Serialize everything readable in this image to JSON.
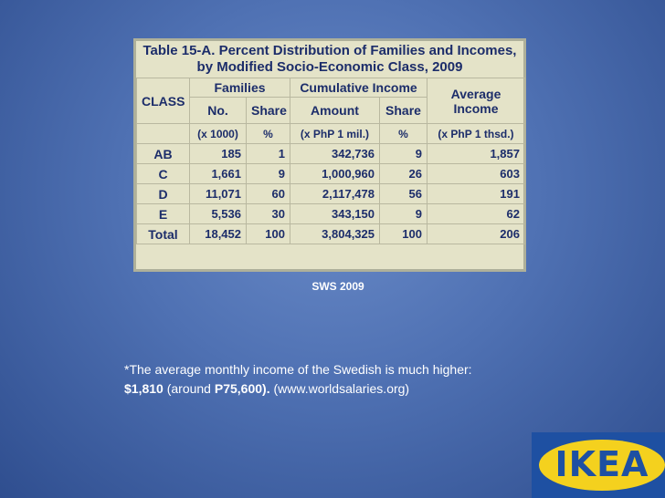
{
  "table": {
    "title_line1": "Table 15-A. Percent Distribution of Families and Incomes,",
    "title_line2": "by Modified Socio-Economic Class, 2009",
    "headers": {
      "class": "CLASS",
      "families": "Families",
      "cumulative_income": "Cumulative Income",
      "average_income": "Average Income",
      "no": "No.",
      "share": "Share",
      "amount": "Amount",
      "share2": "Share",
      "unit_no": "(x 1000)",
      "unit_pct": "%",
      "unit_amount": "(x PhP 1 mil.)",
      "unit_pct2": "%",
      "unit_avg": "(x PhP 1 thsd.)"
    },
    "rows": [
      {
        "class": "AB",
        "no": "185",
        "share": "1",
        "amount": "342,736",
        "share2": "9",
        "avg": "1,857"
      },
      {
        "class": "C",
        "no": "1,661",
        "share": "9",
        "amount": "1,000,960",
        "share2": "26",
        "avg": "603"
      },
      {
        "class": "D",
        "no": "11,071",
        "share": "60",
        "amount": "2,117,478",
        "share2": "56",
        "avg": "191"
      },
      {
        "class": "E",
        "no": "5,536",
        "share": "30",
        "amount": "343,150",
        "share2": "9",
        "avg": "62"
      },
      {
        "class": "Total",
        "no": "18,452",
        "share": "100",
        "amount": "3,804,325",
        "share2": "100",
        "avg": "206"
      }
    ]
  },
  "source": "SWS 2009",
  "note": {
    "line1": "*The average monthly income of the Swedish is much higher:",
    "amount_usd": "$1,810",
    "around_open": " (around ",
    "amount_php": "P75,600",
    "close": ").",
    "site": " (www.worldsalaries.org)"
  },
  "logo": {
    "text": "IKEA",
    "colors": {
      "blue": "#1e50a2",
      "yellow": "#f4d11e"
    }
  }
}
